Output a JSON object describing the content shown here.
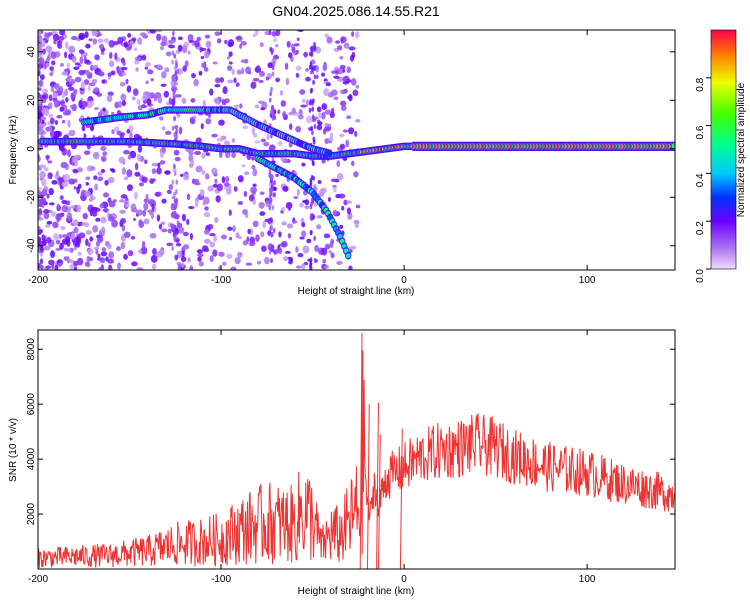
{
  "chart_data": [
    {
      "type": "heatmap",
      "title": "GN04.2025.086.14.55.R21",
      "xlabel": "Height of straight line (km)",
      "ylabel": "Frequency (Hz)",
      "xlim": [
        -200,
        148
      ],
      "ylim": [
        -50,
        49
      ],
      "xticks": [
        -200,
        -100,
        0,
        100
      ],
      "yticks": [
        -40,
        -20,
        0,
        20,
        40
      ],
      "colorbar": {
        "label": "Normalized spectral amplitude",
        "range": [
          0,
          1
        ],
        "ticks": [
          0.0,
          0.2,
          0.4,
          0.6,
          0.8
        ]
      },
      "traces": [
        {
          "name": "main-band",
          "points": [
            [
              -198,
              3
            ],
            [
              -150,
              3
            ],
            [
              -125,
              2
            ],
            [
              -110,
              1
            ],
            [
              -100,
              0
            ],
            [
              -90,
              0
            ],
            [
              -80,
              -2
            ],
            [
              -60,
              -2
            ],
            [
              -50,
              -3
            ],
            [
              -40,
              -3
            ],
            [
              -30,
              -2
            ],
            [
              -20,
              -1
            ],
            [
              -10,
              0
            ],
            [
              0,
              1
            ],
            [
              10,
              1
            ],
            [
              148,
              1
            ]
          ]
        },
        {
          "name": "upper-band",
          "points": [
            [
              -175,
              11
            ],
            [
              -155,
              13
            ],
            [
              -140,
              14
            ],
            [
              -130,
              16
            ],
            [
              -95,
              16
            ],
            [
              -80,
              10
            ],
            [
              -65,
              5
            ],
            [
              -50,
              0
            ],
            [
              -40,
              -2
            ]
          ]
        },
        {
          "name": "descending-branch",
          "points": [
            [
              -80,
              -4
            ],
            [
              -70,
              -8
            ],
            [
              -60,
              -12
            ],
            [
              -50,
              -18
            ],
            [
              -42,
              -26
            ],
            [
              -35,
              -36
            ],
            [
              -30,
              -45
            ]
          ]
        }
      ]
    },
    {
      "type": "line",
      "xlabel": "Height of straight line (km)",
      "ylabel": "SNR (10 * v/v)",
      "xlim": [
        -200,
        148
      ],
      "ylim": [
        0,
        8700
      ],
      "xticks": [
        -200,
        -100,
        0,
        100
      ],
      "yticks": [
        2000,
        4000,
        6000,
        8000
      ],
      "color": "#ee3333",
      "series": [
        {
          "name": "SNR",
          "x": [
            -200,
            -180,
            -160,
            -140,
            -125,
            -110,
            -100,
            -90,
            -75,
            -60,
            -55,
            -50,
            -45,
            -40,
            -35,
            -30,
            -24,
            -22,
            -20,
            -18,
            -16,
            -14,
            -12,
            -10,
            -5,
            0,
            5,
            10,
            20,
            30,
            40,
            50,
            60,
            80,
            100,
            120,
            148
          ],
          "y": [
            400,
            450,
            500,
            650,
            900,
            1000,
            1100,
            1400,
            1700,
            1600,
            2200,
            1800,
            800,
            1300,
            1200,
            1700,
            2300,
            5000,
            2200,
            2000,
            3300,
            2000,
            2900,
            3300,
            3500,
            3700,
            3900,
            4100,
            4300,
            4400,
            4550,
            4400,
            4100,
            3700,
            3500,
            3100,
            2700
          ]
        },
        {
          "name": "SNR-spikes",
          "x": [
            -24,
            -23,
            -20,
            -19,
            -15,
            -14,
            -14,
            -13,
            -2,
            -1
          ],
          "y": [
            0,
            8600,
            0,
            6000,
            0,
            6050,
            0,
            4900,
            0,
            5100
          ]
        }
      ]
    }
  ]
}
